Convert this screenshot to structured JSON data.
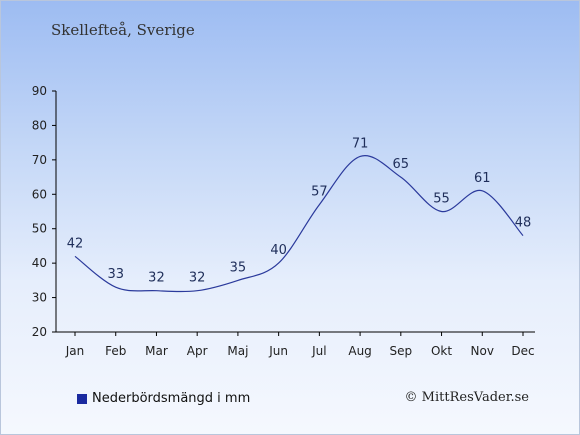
{
  "header": {
    "title": "Skellefteå, Sverige"
  },
  "chart_data": {
    "type": "line",
    "categories": [
      "Jan",
      "Feb",
      "Mar",
      "Apr",
      "Maj",
      "Jun",
      "Jul",
      "Aug",
      "Sep",
      "Okt",
      "Nov",
      "Dec"
    ],
    "series": [
      {
        "name": "Nederbördsmängd i mm",
        "values": [
          42,
          33,
          32,
          32,
          35,
          40,
          57,
          71,
          65,
          55,
          61,
          48
        ]
      }
    ],
    "ylim": [
      20,
      90
    ],
    "yticks": [
      20,
      30,
      40,
      50,
      60,
      70,
      80,
      90
    ],
    "line_color": "#2b3a9c",
    "legend_color": "#1a2aa0",
    "grid": false,
    "legend_position": "bottom-left"
  },
  "footer": {
    "copyright": "© MittResVader.se"
  }
}
